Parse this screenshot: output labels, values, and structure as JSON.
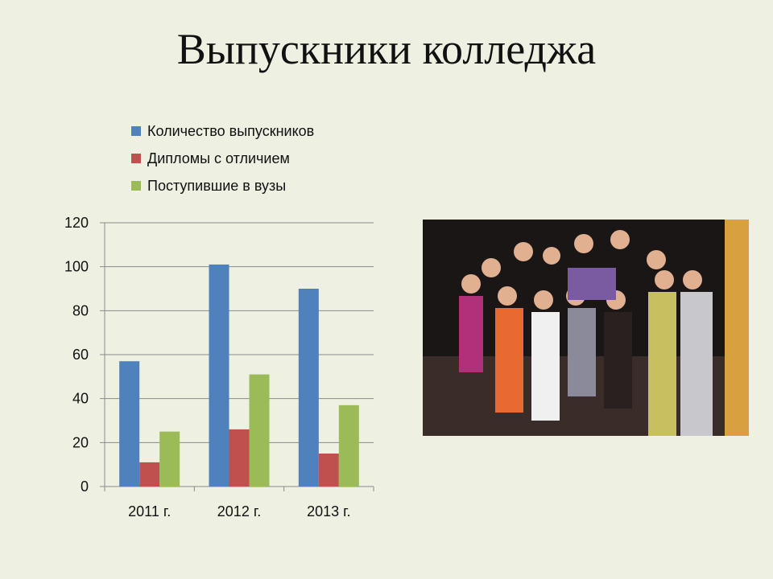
{
  "title": "Выпускники колледжа",
  "colors": {
    "blue": "#4f81bd",
    "red": "#c0504d",
    "green": "#9bbb59",
    "background": "#eef0e2"
  },
  "photo": {
    "description_icon": "graduates-group-photo"
  },
  "chart_data": {
    "type": "bar",
    "categories": [
      "2011 г.",
      "2012 г.",
      "2013 г."
    ],
    "series": [
      {
        "name": "Количество выпускников",
        "values": [
          57,
          101,
          90
        ],
        "color": "#4f81bd"
      },
      {
        "name": "Дипломы с отличием",
        "values": [
          11,
          26,
          15
        ],
        "color": "#c0504d"
      },
      {
        "name": "Поступившие в вузы",
        "values": [
          25,
          51,
          37
        ],
        "color": "#9bbb59"
      }
    ],
    "yticks": [
      0,
      20,
      40,
      60,
      80,
      100,
      120
    ],
    "ylim": [
      0,
      120
    ],
    "grid": true,
    "legend_position": "top"
  }
}
